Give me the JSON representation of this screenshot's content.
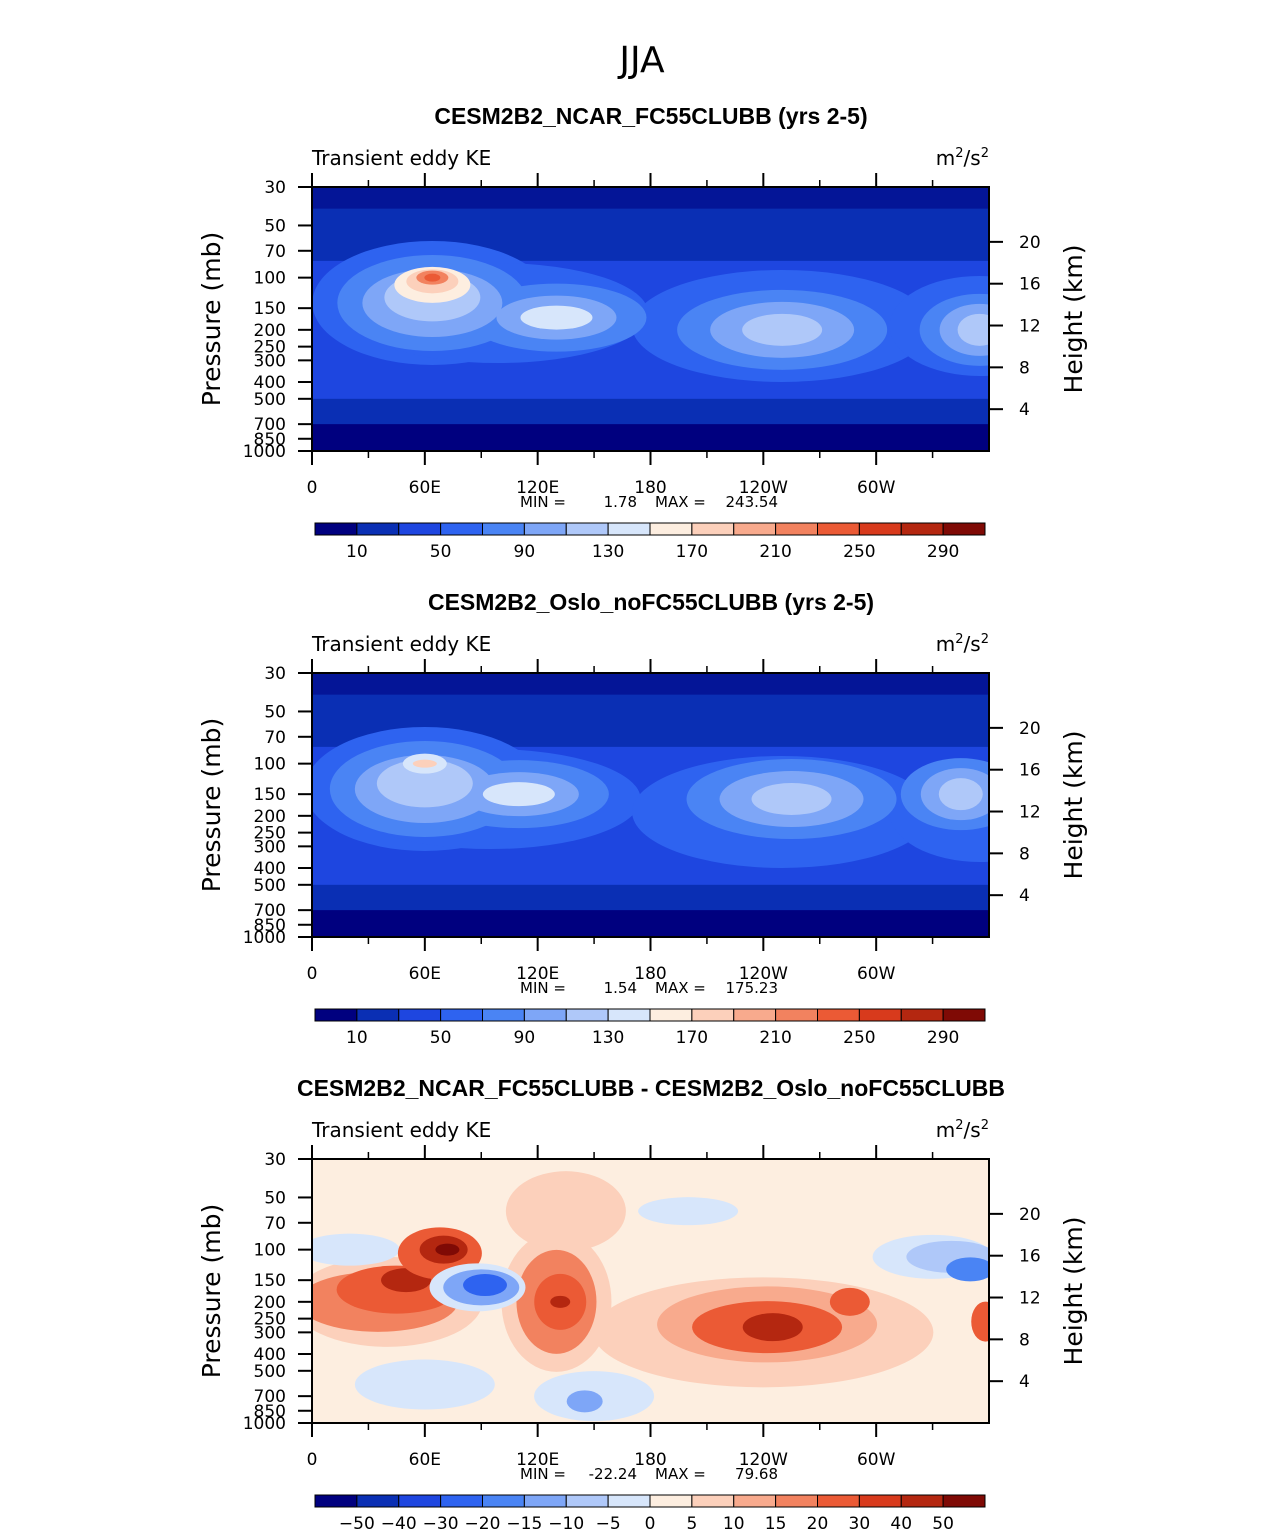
{
  "figure_title": "JJA",
  "chart_data": [
    {
      "type": "contour",
      "title": "CESM2B2_NCAR_FC55CLUBB (yrs 2-5)",
      "left_string": "Transient eddy KE",
      "units_base": "m",
      "units_sup1": "2",
      "units_mid": "/s",
      "units_sup2": "2",
      "ylabel": "Pressure (mb)",
      "ylabel_right": "Height (km)",
      "x_ticks": [
        "0",
        "60E",
        "120E",
        "180",
        "120W",
        "60W"
      ],
      "y_ticks": [
        "30",
        "50",
        "70",
        "100",
        "150",
        "200",
        "250",
        "300",
        "400",
        "500",
        "700",
        "850",
        "1000"
      ],
      "right_ticks": [
        "20",
        "16",
        "12",
        "8",
        "4"
      ],
      "min_label": "MIN =",
      "min_value": "1.78",
      "max_label": "MAX =",
      "max_value": "243.54",
      "colorbar_labels": [
        "10",
        "50",
        "90",
        "130",
        "170",
        "210",
        "250",
        "290"
      ],
      "colorbar_colors": [
        "#00007f",
        "#0a2fb4",
        "#1e46e0",
        "#2e63f0",
        "#4a84f4",
        "#7ea6f7",
        "#afc8f9",
        "#d7e6fb",
        "#fdeee0",
        "#fcd0bb",
        "#f8aa8d",
        "#f2825f",
        "#eb5a35",
        "#d83a1c",
        "#b42710",
        "#7f0a05"
      ],
      "features": [
        {
          "x": 64,
          "p": 100,
          "value": 243.54,
          "kind": "max"
        },
        {
          "x": 130,
          "p": 170,
          "value": 150
        },
        {
          "x": 250,
          "p": 200,
          "value": 150
        },
        {
          "x": 355,
          "p": 200,
          "value": 135
        }
      ]
    },
    {
      "type": "contour",
      "title": "CESM2B2_Oslo_noFC55CLUBB (yrs 2-5)",
      "left_string": "Transient eddy KE",
      "units_base": "m",
      "units_sup1": "2",
      "units_mid": "/s",
      "units_sup2": "2",
      "ylabel": "Pressure (mb)",
      "ylabel_right": "Height (km)",
      "x_ticks": [
        "0",
        "60E",
        "120E",
        "180",
        "120W",
        "60W"
      ],
      "y_ticks": [
        "30",
        "50",
        "70",
        "100",
        "150",
        "200",
        "250",
        "300",
        "400",
        "500",
        "700",
        "850",
        "1000"
      ],
      "right_ticks": [
        "20",
        "16",
        "12",
        "8",
        "4"
      ],
      "min_label": "MIN =",
      "min_value": "1.54",
      "max_label": "MAX =",
      "max_value": "175.23",
      "colorbar_labels": [
        "10",
        "50",
        "90",
        "130",
        "170",
        "210",
        "250",
        "290"
      ],
      "colorbar_colors": [
        "#00007f",
        "#0a2fb4",
        "#1e46e0",
        "#2e63f0",
        "#4a84f4",
        "#7ea6f7",
        "#afc8f9",
        "#d7e6fb",
        "#fdeee0",
        "#fcd0bb",
        "#f8aa8d",
        "#f2825f",
        "#eb5a35",
        "#d83a1c",
        "#b42710",
        "#7f0a05"
      ],
      "features": [
        {
          "x": 60,
          "p": 100,
          "value": 175.23,
          "kind": "max"
        },
        {
          "x": 110,
          "p": 150,
          "value": 140
        },
        {
          "x": 255,
          "p": 160,
          "value": 135
        },
        {
          "x": 345,
          "p": 150,
          "value": 130
        }
      ]
    },
    {
      "type": "contour",
      "title": "CESM2B2_NCAR_FC55CLUBB - CESM2B2_Oslo_noFC55CLUBB",
      "left_string": "Transient eddy KE",
      "units_base": "m",
      "units_sup1": "2",
      "units_mid": "/s",
      "units_sup2": "2",
      "ylabel": "Pressure (mb)",
      "ylabel_right": "Height (km)",
      "x_ticks": [
        "0",
        "60E",
        "120E",
        "180",
        "120W",
        "60W"
      ],
      "y_ticks": [
        "30",
        "50",
        "70",
        "100",
        "150",
        "200",
        "250",
        "300",
        "400",
        "500",
        "700",
        "850",
        "1000"
      ],
      "right_ticks": [
        "20",
        "16",
        "12",
        "8",
        "4"
      ],
      "min_label": "MIN =",
      "min_value": "-22.24",
      "max_label": "MAX =",
      "max_value": "79.68",
      "colorbar_labels": [
        "−50",
        "−40",
        "−30",
        "−20",
        "−15",
        "−10",
        "−5",
        "0",
        "5",
        "10",
        "15",
        "20",
        "30",
        "40",
        "50"
      ],
      "colorbar_colors": [
        "#00007f",
        "#0a2fb4",
        "#1e46e0",
        "#2e63f0",
        "#4a84f4",
        "#7ea6f7",
        "#afc8f9",
        "#d7e6fb",
        "#fdeee0",
        "#fcd0bb",
        "#f8aa8d",
        "#f2825f",
        "#eb5a35",
        "#d83a1c",
        "#b42710",
        "#7f0a05"
      ],
      "features": [
        {
          "x": 68,
          "p": 100,
          "value": 79.68,
          "kind": "max"
        },
        {
          "x": 90,
          "p": 165,
          "value": -22.24,
          "kind": "min"
        },
        {
          "x": 130,
          "p": 200,
          "value": 40
        },
        {
          "x": 242,
          "p": 270,
          "value": 45
        },
        {
          "x": 20,
          "p": 220,
          "value": 30
        }
      ]
    }
  ]
}
